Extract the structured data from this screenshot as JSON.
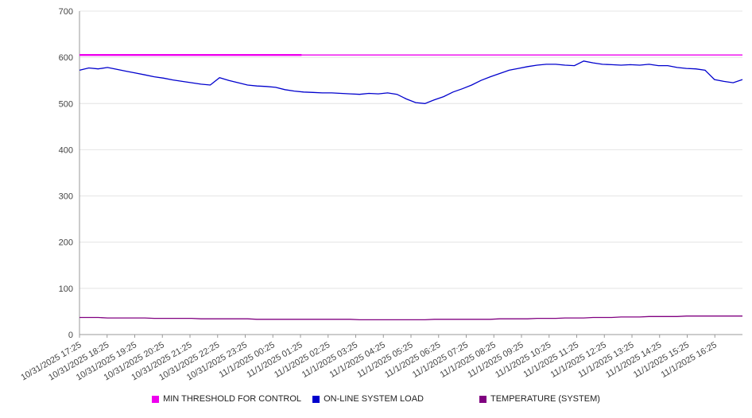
{
  "chart_data": {
    "type": "line",
    "title": "",
    "xlabel": "",
    "ylabel": "",
    "ylim": [
      0,
      700
    ],
    "y_ticks": [
      0,
      100,
      200,
      300,
      400,
      500,
      600,
      700
    ],
    "grid": true,
    "legend_position": "bottom",
    "x_tick_labels": [
      "10/31/2025 17:25",
      "10/31/2025 18:25",
      "10/31/2025 19:25",
      "10/31/2025 20:25",
      "10/31/2025 21:25",
      "10/31/2025 22:25",
      "10/31/2025 23:25",
      "11/1/2025 00:25",
      "11/1/2025 01:25",
      "11/1/2025 02:25",
      "11/1/2025 03:25",
      "11/1/2025 04:25",
      "11/1/2025 05:25",
      "11/1/2025 06:25",
      "11/1/2025 07:25",
      "11/1/2025 08:25",
      "11/1/2025 09:25",
      "11/1/2025 10:25",
      "11/1/2025 11:25",
      "11/1/2025 12:25",
      "11/1/2025 13:25",
      "11/1/2025 14:25",
      "11/1/2025 15:25",
      "11/1/2025 16:25"
    ],
    "series": [
      {
        "name": "MIN THRESHOLD FOR CONTROL",
        "color": "#ee00ee",
        "type": "constant",
        "value": 605
      },
      {
        "name": "ON-LINE SYSTEM LOAD",
        "color": "#0000cd",
        "type": "line",
        "values": [
          572,
          577,
          575,
          578,
          574,
          570,
          566,
          562,
          558,
          555,
          551,
          548,
          545,
          542,
          540,
          556,
          550,
          545,
          540,
          538,
          537,
          535,
          530,
          527,
          525,
          524,
          523,
          523,
          522,
          521,
          520,
          522,
          521,
          523,
          520,
          510,
          502,
          500,
          508,
          515,
          525,
          532,
          540,
          550,
          558,
          565,
          572,
          576,
          580,
          583,
          585,
          585,
          583,
          582,
          592,
          588,
          585,
          584,
          583,
          584,
          583,
          585,
          582,
          582,
          578,
          576,
          575,
          572,
          552,
          548,
          545,
          552
        ]
      },
      {
        "name": "TEMPERATURE (SYSTEM)",
        "color": "#800080",
        "type": "line",
        "values": [
          37,
          37,
          37,
          36,
          36,
          36,
          36,
          36,
          35,
          35,
          35,
          35,
          35,
          34,
          34,
          34,
          34,
          34,
          34,
          33,
          33,
          33,
          33,
          33,
          33,
          33,
          33,
          33,
          33,
          33,
          32,
          32,
          32,
          32,
          32,
          32,
          32,
          32,
          33,
          33,
          33,
          33,
          33,
          33,
          33,
          34,
          34,
          34,
          34,
          35,
          35,
          35,
          36,
          36,
          36,
          37,
          37,
          37,
          38,
          38,
          38,
          39,
          39,
          39,
          39,
          40,
          40,
          40,
          40,
          40,
          40,
          40
        ]
      }
    ]
  }
}
